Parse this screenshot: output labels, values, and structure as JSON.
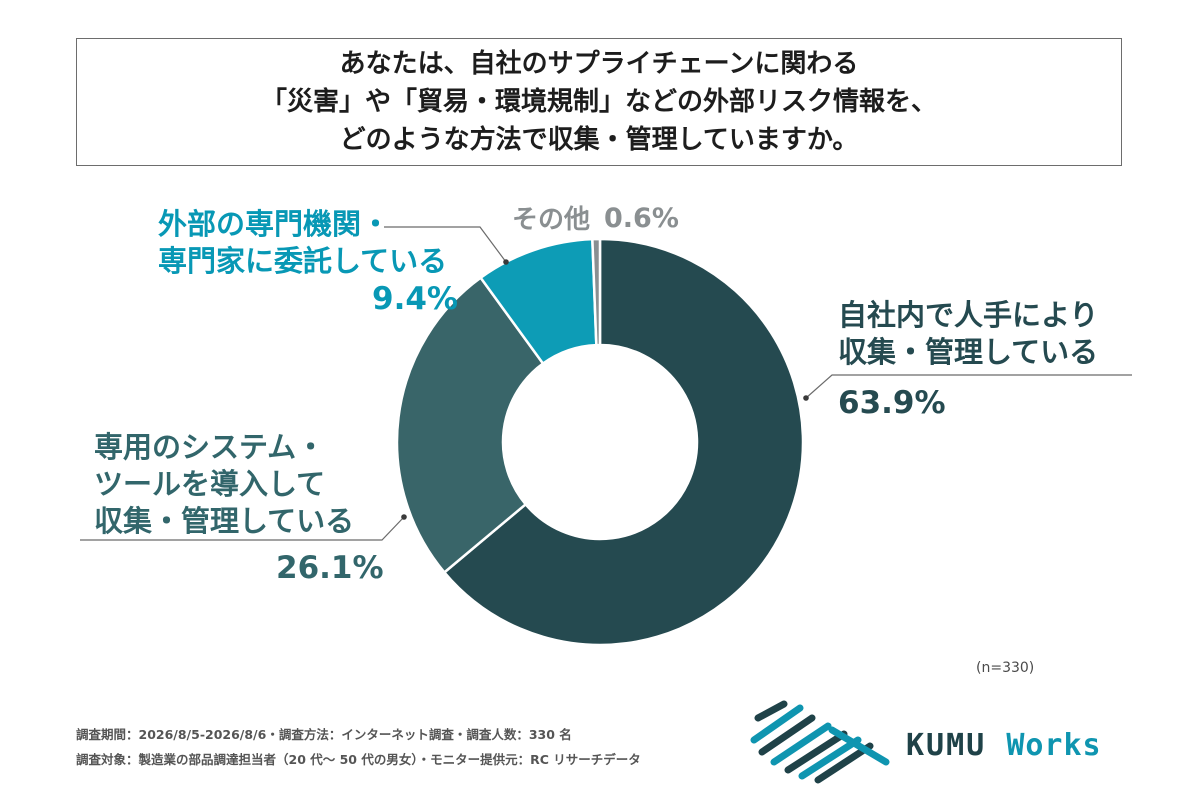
{
  "title": {
    "line1": "あなたは、自社のサプライチェーンに関わる",
    "line2": "「災害」や「貿易・環境規制」などの外部リスク情報を、",
    "line3": "どのような方法で収集・管理していますか。"
  },
  "chart_data": {
    "type": "pie",
    "donut": true,
    "title": "あなたは、自社のサプライチェーンに関わる「災害」や「貿易・環境規制」などの外部リスク情報を、どのような方法で収集・管理していますか。",
    "sample_note": "(n=330)",
    "slices": [
      {
        "label_lines": [
          "自社内で人手により",
          "収集・管理している"
        ],
        "value_text": "63.9%",
        "value": 63.9,
        "color": "#254a50"
      },
      {
        "label_lines": [
          "専用のシステム・",
          "ツールを導入して",
          "収集・管理している"
        ],
        "value_text": "26.1%",
        "value": 26.1,
        "color": "#396569"
      },
      {
        "label_lines": [
          "外部の専門機関・",
          "専門家に委託している"
        ],
        "value_text": "9.4%",
        "value": 9.4,
        "color": "#0d9cb6"
      },
      {
        "label_lines": [
          "その他"
        ],
        "value_text": "0.6%",
        "value": 0.6,
        "color": "#8a8f91"
      }
    ]
  },
  "footer": {
    "line1": "調査期間：2026/8/5-2026/8/6・調査方法：インターネット調査・調査人数：330 名",
    "line2": "調査対象：製造業の部品調達担当者（20 代〜 50 代の男女）・モニター提供元：RC リサーチデータ"
  },
  "brand": {
    "name_main": "KUMU",
    "name_sub": "Works",
    "logo": "kumu-works-logo",
    "colors": {
      "dark": "#1f4248",
      "accent": "#0f95b0"
    }
  }
}
